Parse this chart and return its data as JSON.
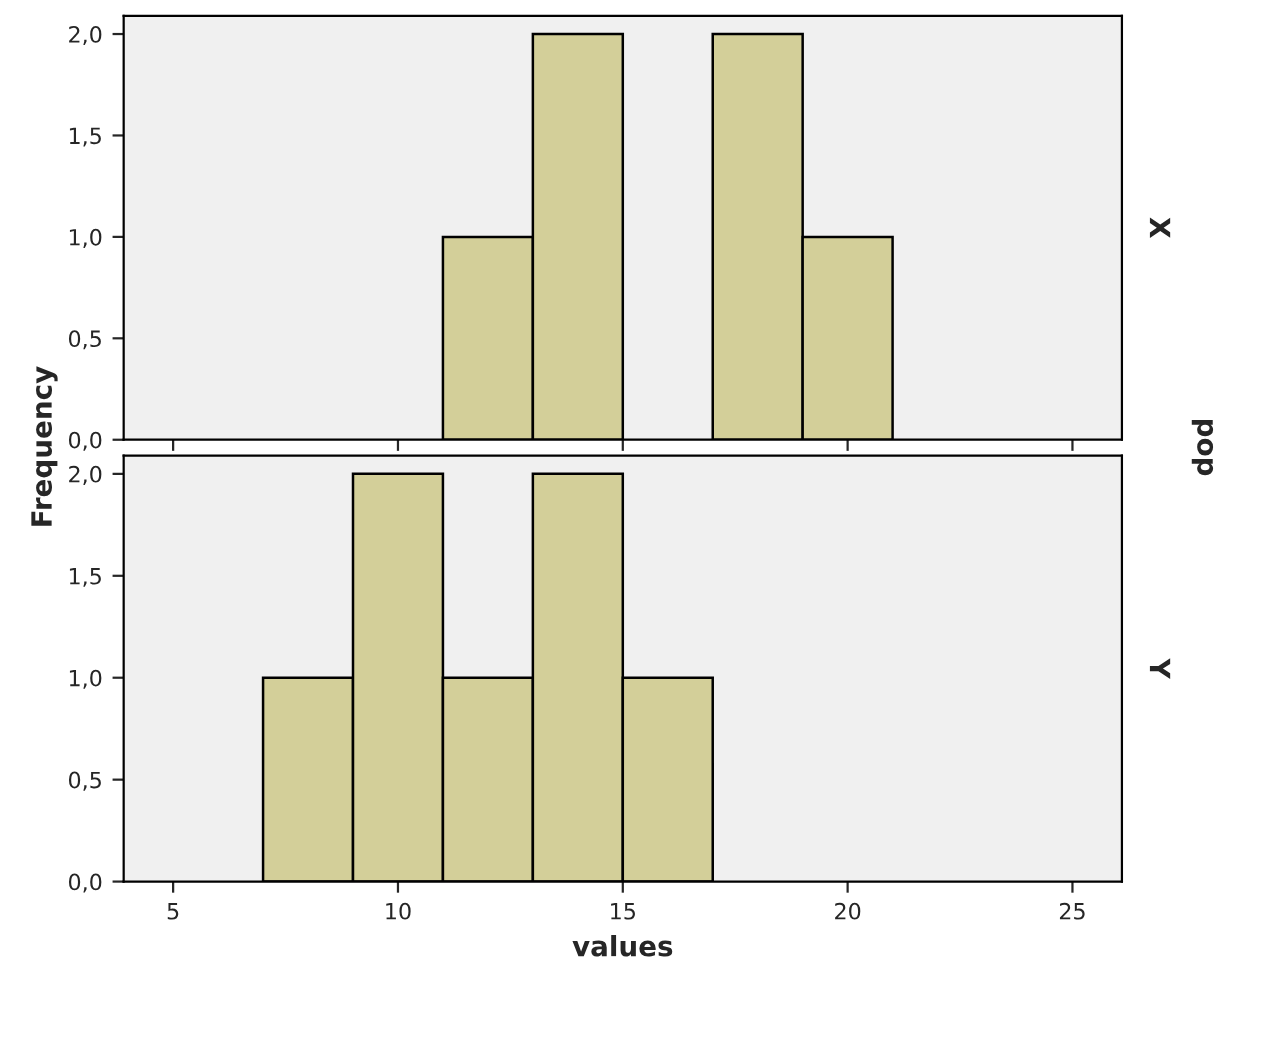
{
  "chart_data": [
    {
      "type": "histogram",
      "y2label": "X",
      "ylabel": "Frequency",
      "annotations": [
        "pop"
      ],
      "bins": [
        11,
        13,
        15,
        17,
        19,
        21
      ],
      "values": [
        1,
        2,
        0,
        2,
        1
      ],
      "color": "#d3cf99",
      "xlim": [
        3.9,
        26.1
      ],
      "ylim": [
        0,
        2.09
      ],
      "xticks": [
        5,
        10,
        15,
        20,
        25
      ],
      "yticks": [
        {
          "value": 0,
          "label": "0,0"
        },
        {
          "value": 0.5,
          "label": "0,5"
        },
        {
          "value": 1,
          "label": "1,0"
        },
        {
          "value": 1.5,
          "label": "1,5"
        },
        {
          "value": 2,
          "label": "2,0"
        }
      ],
      "tick_labels": "y"
    },
    {
      "type": "histogram",
      "y2label": "Y",
      "xlabel": "values",
      "bins": [
        7,
        9,
        11,
        13,
        15,
        17
      ],
      "values": [
        1,
        2,
        1,
        2,
        1
      ],
      "color": "#d3cf99",
      "xlim": [
        3.9,
        26.1
      ],
      "ylim": [
        0,
        2.09
      ],
      "xticks": [
        5,
        10,
        15,
        20,
        25
      ],
      "yticks": [
        {
          "value": 0,
          "label": "0,0"
        },
        {
          "value": 0.5,
          "label": "0,5"
        },
        {
          "value": 1,
          "label": "1,0"
        },
        {
          "value": 1.5,
          "label": "1,5"
        },
        {
          "value": 2,
          "label": "2,0"
        }
      ]
    }
  ]
}
